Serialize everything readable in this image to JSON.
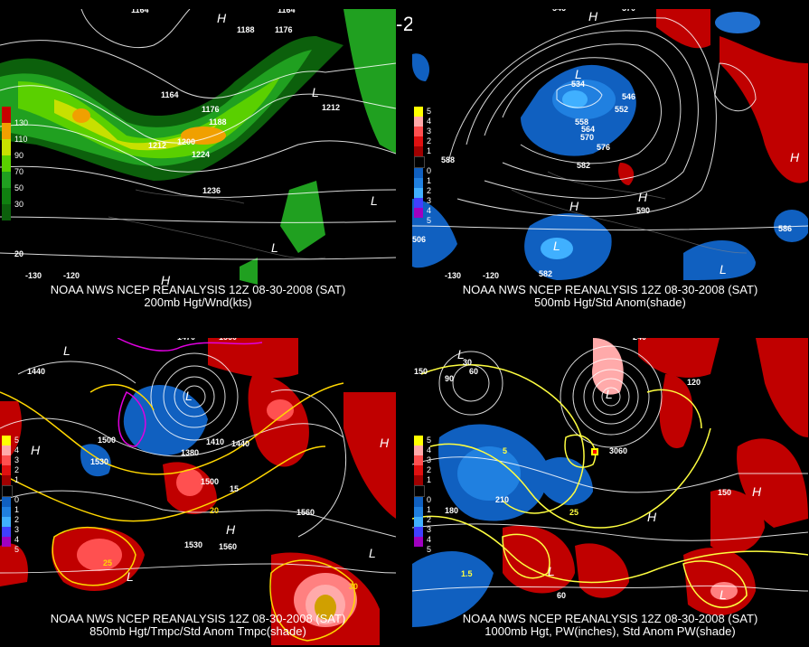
{
  "title": "12Z 08-30-2008 (SAT)",
  "panels": [
    {
      "caption_line1": "NOAA NWS NCEP REANALYSIS 12Z 08-30-2008 (SAT)",
      "caption_line2": "200mb Hgt/Wnd(kts)",
      "legend": [
        "130",
        "110",
        "90",
        "70",
        "50",
        "30"
      ],
      "legend_colors": [
        "#c80000",
        "#f0a000",
        "#c8e000",
        "#5ad000",
        "#20a020",
        "#108010",
        "#0c600c"
      ]
    },
    {
      "caption_line1": "NOAA NWS NCEP REANALYSIS 12Z 08-30-2008 (SAT)",
      "caption_line2": "500mb Hgt/Std Anom(shade)",
      "legend": [
        "5",
        "4",
        "3",
        "2",
        "1",
        "0",
        "1",
        "2",
        "3",
        "4",
        "5"
      ],
      "legend_colors": [
        "#ffff00",
        "#ffaaaa",
        "#ff5050",
        "#e01010",
        "#a00000",
        "#000000",
        "#1060c0",
        "#2080e0",
        "#40b0ff",
        "#4040ff",
        "#a000c0"
      ]
    },
    {
      "caption_line1": "NOAA NWS NCEP REANALYSIS 12Z 08-30-2008 (SAT)",
      "caption_line2": "850mb Hgt/Tmpc/Std Anom Tmpc(shade)",
      "legend": [
        "5",
        "4",
        "3",
        "2",
        "1",
        "0",
        "1",
        "2",
        "3",
        "4",
        "5"
      ],
      "legend_colors": [
        "#ffff00",
        "#ffaaaa",
        "#ff5050",
        "#e01010",
        "#a00000",
        "#000000",
        "#1060c0",
        "#2080e0",
        "#40b0ff",
        "#4040ff",
        "#a000c0"
      ]
    },
    {
      "caption_line1": "NOAA NWS NCEP REANALYSIS 12Z 08-30-2008 (SAT)",
      "caption_line2": "1000mb Hgt, PW(inches), Std Anom PW(shade)",
      "legend": [
        "5",
        "4",
        "3",
        "2",
        "1",
        "0",
        "1",
        "2",
        "3",
        "4",
        "5"
      ],
      "legend_colors": [
        "#ffff00",
        "#ffaaaa",
        "#ff5050",
        "#e01010",
        "#a00000",
        "#000000",
        "#1060c0",
        "#2080e0",
        "#40b0ff",
        "#4040ff",
        "#a000c0"
      ]
    }
  ],
  "labels": {
    "p1": [
      "1164",
      "1188",
      "1176",
      "1164",
      "1212",
      "1200",
      "1212",
      "1224",
      "1236",
      "1188",
      "1176",
      "1164",
      "20",
      "-120",
      "-130"
    ],
    "p2": [
      "546",
      "570",
      "534",
      "546",
      "552",
      "558",
      "564",
      "570",
      "576",
      "582",
      "588",
      "590",
      "582",
      "506",
      "586",
      "-130",
      "-120"
    ],
    "p3": [
      "1470",
      "1560",
      "1500",
      "1440",
      "1530",
      "1380",
      "1500",
      "1410",
      "1440",
      "1560",
      "1530",
      "1560",
      "15",
      "20",
      "25",
      "30"
    ],
    "p4": [
      "240",
      "150",
      "90",
      "30",
      "60",
      "210",
      "180",
      "150",
      "120",
      "60",
      "3060",
      "1.5",
      "25",
      "5"
    ]
  }
}
